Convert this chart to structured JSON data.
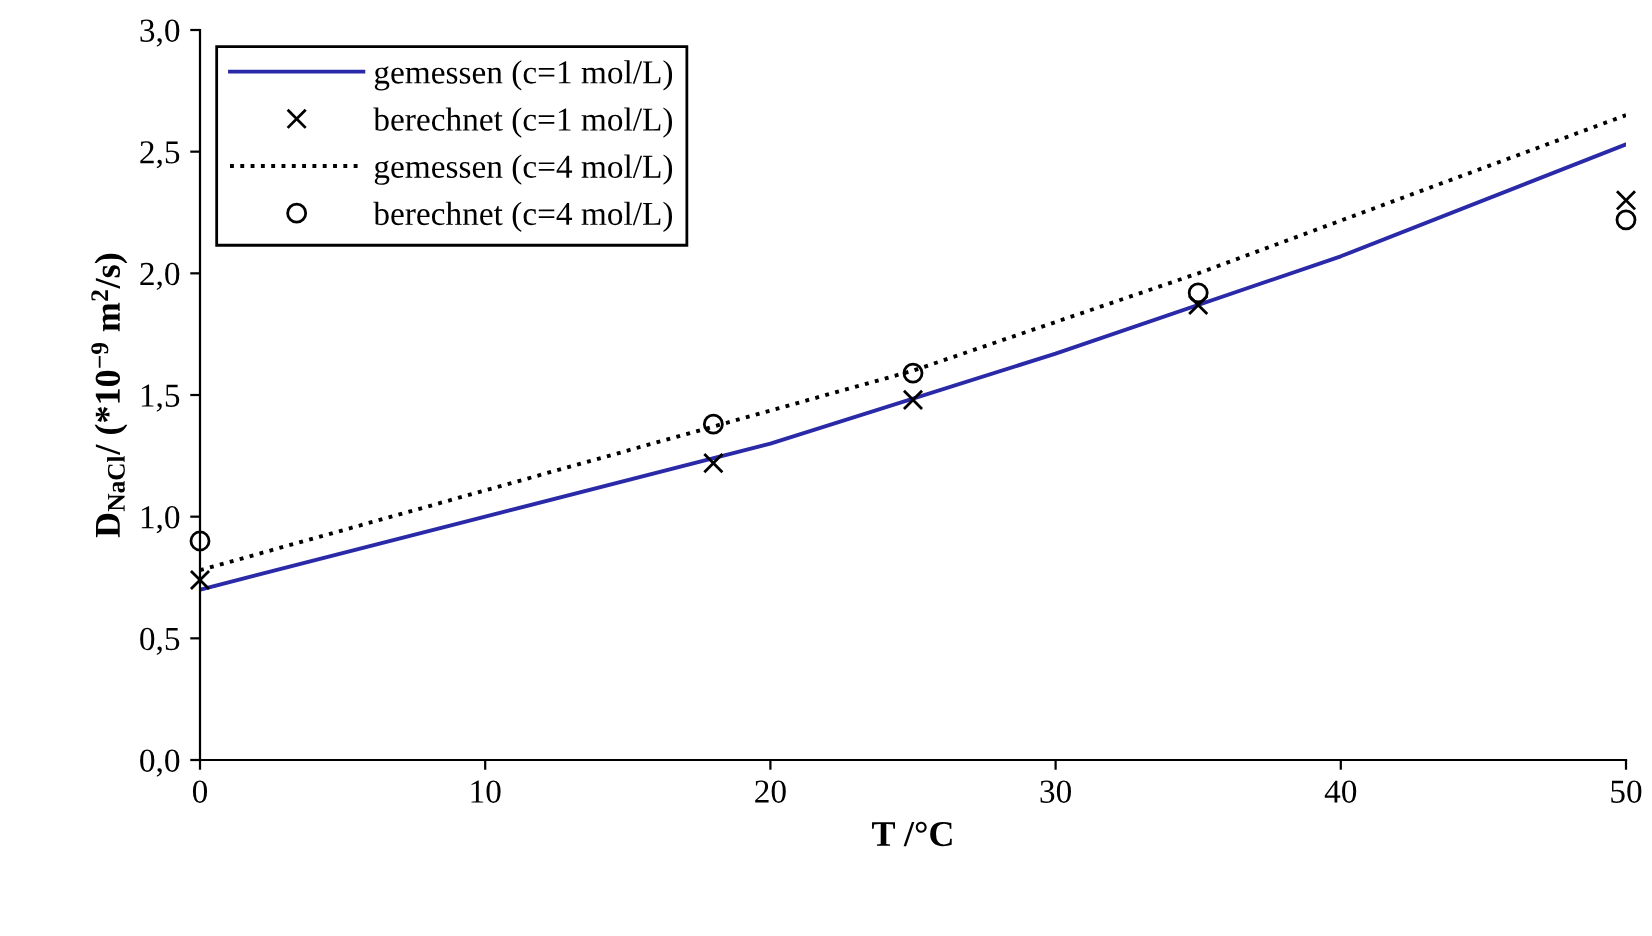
{
  "chart_data": {
    "type": "line",
    "xlabel": "T /°C",
    "ylabel": "D$_{NaCl}$/ (*10$^{−9}$ m$^{2}$/s)",
    "series": [
      {
        "name": "gemessen (c=1 mol/L)",
        "color": "#2a2aa8",
        "line_style": "solid",
        "marker": "none",
        "x": [
          0,
          10,
          20,
          30,
          40,
          50
        ],
        "values": [
          0.7,
          1.0,
          1.3,
          1.67,
          2.07,
          2.53
        ]
      },
      {
        "name": "berechnet (c=1 mol/L)",
        "type": "scatter",
        "color": "#000000",
        "marker": "cross",
        "x": [
          0,
          18,
          25,
          35,
          50
        ],
        "values": [
          0.74,
          1.22,
          1.48,
          1.87,
          2.3
        ]
      },
      {
        "name": "gemessen (c=4 mol/L)",
        "color": "#000000",
        "line_style": "dotted",
        "marker": "none",
        "x": [
          0,
          25,
          35,
          50
        ],
        "values": [
          0.78,
          1.6,
          2.0,
          2.65
        ]
      },
      {
        "name": "berechnet (c=4 mol/L)",
        "type": "scatter",
        "color": "#000000",
        "marker": "circle",
        "x": [
          0,
          18,
          25,
          35,
          50
        ],
        "values": [
          0.9,
          1.38,
          1.59,
          1.92,
          2.22
        ]
      }
    ],
    "xlim": [
      0,
      50
    ],
    "xticks": [
      0,
      10,
      20,
      30,
      40,
      50
    ],
    "ylim": [
      0,
      3
    ],
    "yticks": [
      {
        "value": 0,
        "label": "0,0"
      },
      {
        "value": 0.5,
        "label": "0,5"
      },
      {
        "value": 1,
        "label": "1,0"
      },
      {
        "value": 1.5,
        "label": "1,5"
      },
      {
        "value": 2,
        "label": "2,0"
      },
      {
        "value": 2.5,
        "label": "2,5"
      },
      {
        "value": 3,
        "label": "3,0"
      }
    ],
    "grid": false,
    "legend": "top left"
  }
}
